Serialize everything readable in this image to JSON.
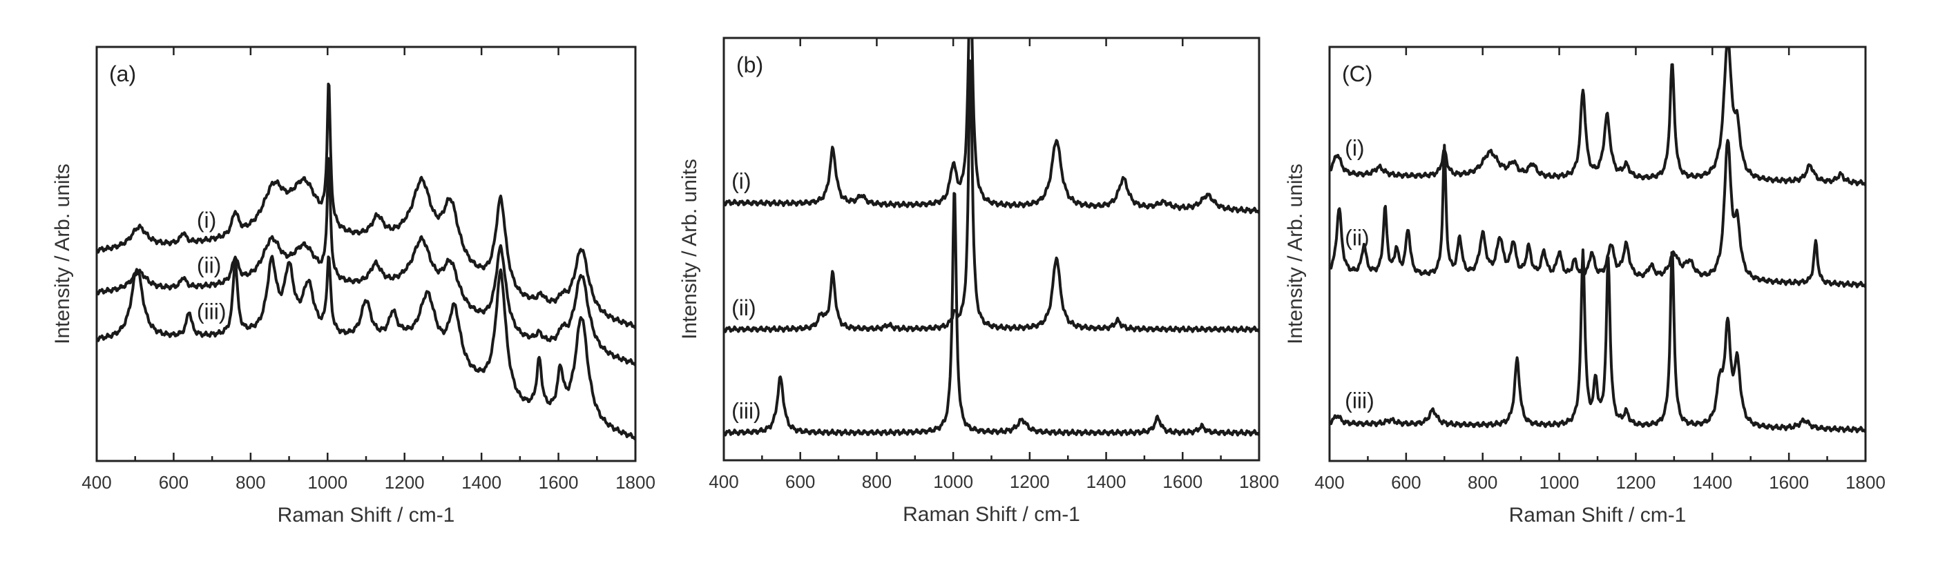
{
  "chart_data": [
    {
      "type": "line",
      "panel_label": "(a)",
      "xlabel": "Raman Shift / cm-1",
      "ylabel": "Intensity / Arb. units",
      "xlim": [
        400,
        1800
      ],
      "xticks": [
        400,
        600,
        800,
        1000,
        1200,
        1400,
        1600,
        1800
      ],
      "ylim": [
        0,
        10
      ],
      "grid": false,
      "series": [
        {
          "name": "(i)",
          "label_x": 660,
          "baseline": [
            [
              400,
              5.05
            ],
            [
              800,
              5.3
            ],
            [
              1200,
              5.2
            ],
            [
              1500,
              3.8
            ],
            [
              1800,
              3.2
            ]
          ],
          "peaks": [
            [
              510,
              0.5,
              25
            ],
            [
              625,
              0.25,
              8
            ],
            [
              760,
              0.55,
              10
            ],
            [
              860,
              1.1,
              35
            ],
            [
              940,
              1.3,
              45
            ],
            [
              1003,
              3.4,
              5
            ],
            [
              1130,
              0.5,
              18
            ],
            [
              1245,
              1.6,
              30
            ],
            [
              1320,
              1.4,
              25
            ],
            [
              1450,
              2.2,
              16
            ],
            [
              1555,
              0.2,
              10
            ],
            [
              1610,
              0.2,
              10
            ],
            [
              1660,
              1.6,
              22
            ]
          ]
        },
        {
          "name": "(ii)",
          "label_x": 660,
          "baseline": [
            [
              400,
              4.05
            ],
            [
              800,
              4.2
            ],
            [
              1200,
              4.1
            ],
            [
              1500,
              2.85
            ],
            [
              1800,
              2.3
            ]
          ],
          "peaks": [
            [
              510,
              0.45,
              25
            ],
            [
              625,
              0.25,
              8
            ],
            [
              760,
              0.6,
              10
            ],
            [
              855,
              1.0,
              30
            ],
            [
              940,
              0.9,
              40
            ],
            [
              1003,
              2.9,
              5
            ],
            [
              1125,
              0.5,
              18
            ],
            [
              1245,
              1.3,
              30
            ],
            [
              1320,
              1.0,
              25
            ],
            [
              1450,
              2.0,
              16
            ],
            [
              1550,
              0.2,
              10
            ],
            [
              1610,
              0.3,
              10
            ],
            [
              1660,
              1.9,
              22
            ]
          ]
        },
        {
          "name": "(iii)",
          "label_x": 660,
          "baseline": [
            [
              400,
              2.9
            ],
            [
              800,
              3.0
            ],
            [
              1200,
              2.85
            ],
            [
              1500,
              1.2
            ],
            [
              1800,
              0.5
            ]
          ],
          "peaks": [
            [
              505,
              1.7,
              18
            ],
            [
              640,
              0.6,
              8
            ],
            [
              760,
              1.8,
              7
            ],
            [
              855,
              1.7,
              15
            ],
            [
              900,
              1.5,
              15
            ],
            [
              950,
              1.2,
              18
            ],
            [
              1003,
              1.8,
              6
            ],
            [
              1100,
              0.9,
              15
            ],
            [
              1170,
              0.6,
              12
            ],
            [
              1260,
              1.4,
              25
            ],
            [
              1330,
              1.4,
              18
            ],
            [
              1450,
              3.0,
              16
            ],
            [
              1550,
              1.2,
              8
            ],
            [
              1605,
              1.0,
              9
            ],
            [
              1660,
              2.6,
              20
            ]
          ]
        }
      ]
    },
    {
      "type": "line",
      "panel_label": "(b)",
      "xlabel": "Raman Shift / cm-1",
      "ylabel": "Intensity / Arb. units",
      "xlim": [
        400,
        1800
      ],
      "xticks": [
        400,
        600,
        800,
        1000,
        1200,
        1400,
        1600,
        1800
      ],
      "ylim": [
        0,
        10
      ],
      "grid": false,
      "series": [
        {
          "name": "(i)",
          "label_x": 420,
          "baseline": [
            [
              400,
              6.1
            ],
            [
              1800,
              5.9
            ]
          ],
          "peaks": [
            [
              685,
              1.3,
              10
            ],
            [
              760,
              0.2,
              12
            ],
            [
              1000,
              0.9,
              10
            ],
            [
              1045,
              5.5,
              7
            ],
            [
              1270,
              1.6,
              15
            ],
            [
              1445,
              0.7,
              15
            ],
            [
              1550,
              0.15,
              20
            ],
            [
              1665,
              0.35,
              20
            ]
          ]
        },
        {
          "name": "(ii)",
          "label_x": 420,
          "baseline": [
            [
              400,
              3.1
            ],
            [
              1800,
              3.1
            ]
          ],
          "peaks": [
            [
              655,
              0.3,
              10
            ],
            [
              685,
              1.3,
              8
            ],
            [
              830,
              0.1,
              10
            ],
            [
              1003,
              0.3,
              8
            ],
            [
              1045,
              6.5,
              6
            ],
            [
              1270,
              1.7,
              12
            ],
            [
              1430,
              0.2,
              10
            ]
          ]
        },
        {
          "name": "(iii)",
          "label_x": 420,
          "baseline": [
            [
              400,
              0.65
            ],
            [
              1800,
              0.65
            ]
          ],
          "peaks": [
            [
              548,
              1.3,
              10
            ],
            [
              1003,
              5.8,
              6
            ],
            [
              1180,
              0.3,
              15
            ],
            [
              1535,
              0.35,
              10
            ],
            [
              1650,
              0.15,
              10
            ]
          ]
        }
      ]
    },
    {
      "type": "line",
      "panel_label": "(C)",
      "xlabel": "Raman Shift / cm-1",
      "ylabel": "Intensity / Arb. units",
      "xlim": [
        400,
        1800
      ],
      "xticks": [
        400,
        600,
        800,
        1000,
        1200,
        1400,
        1600,
        1800
      ],
      "ylim": [
        0,
        10
      ],
      "grid": false,
      "series": [
        {
          "name": "(i)",
          "label_x": 440,
          "baseline": [
            [
              400,
              6.9
            ],
            [
              1800,
              6.7
            ]
          ],
          "peaks": [
            [
              420,
              0.5,
              12
            ],
            [
              530,
              0.2,
              15
            ],
            [
              700,
              0.6,
              8
            ],
            [
              820,
              0.6,
              25
            ],
            [
              880,
              0.3,
              12
            ],
            [
              930,
              0.3,
              12
            ],
            [
              1062,
              2.1,
              8
            ],
            [
              1125,
              1.5,
              10
            ],
            [
              1175,
              0.3,
              10
            ],
            [
              1295,
              2.8,
              7
            ],
            [
              1440,
              3.3,
              12
            ],
            [
              1465,
              1.0,
              10
            ],
            [
              1655,
              0.4,
              12
            ],
            [
              1735,
              0.2,
              10
            ]
          ]
        },
        {
          "name": "(ii)",
          "label_x": 440,
          "baseline": [
            [
              400,
              4.5
            ],
            [
              1800,
              4.25
            ]
          ],
          "peaks": [
            [
              425,
              1.6,
              8
            ],
            [
              490,
              0.7,
              7
            ],
            [
              545,
              1.6,
              6
            ],
            [
              575,
              0.6,
              6
            ],
            [
              605,
              1.1,
              7
            ],
            [
              700,
              3.1,
              5
            ],
            [
              740,
              0.9,
              7
            ],
            [
              800,
              1.0,
              10
            ],
            [
              845,
              0.9,
              10
            ],
            [
              880,
              0.8,
              8
            ],
            [
              920,
              0.7,
              8
            ],
            [
              960,
              0.6,
              8
            ],
            [
              1000,
              0.6,
              8
            ],
            [
              1040,
              0.4,
              8
            ],
            [
              1085,
              0.6,
              8
            ],
            [
              1135,
              0.8,
              10
            ],
            [
              1175,
              0.8,
              10
            ],
            [
              1240,
              0.3,
              10
            ],
            [
              1300,
              0.6,
              15
            ],
            [
              1340,
              0.4,
              15
            ],
            [
              1440,
              3.3,
              10
            ],
            [
              1465,
              1.2,
              10
            ],
            [
              1670,
              1.0,
              6
            ]
          ]
        },
        {
          "name": "(iii)",
          "label_x": 440,
          "baseline": [
            [
              400,
              0.9
            ],
            [
              1800,
              0.75
            ]
          ],
          "peaks": [
            [
              420,
              0.2,
              10
            ],
            [
              560,
              0.1,
              15
            ],
            [
              670,
              0.35,
              12
            ],
            [
              890,
              1.6,
              8
            ],
            [
              1062,
              4.2,
              6
            ],
            [
              1095,
              1.0,
              6
            ],
            [
              1128,
              4.0,
              6
            ],
            [
              1175,
              0.3,
              8
            ],
            [
              1295,
              4.3,
              6
            ],
            [
              1420,
              1.0,
              10
            ],
            [
              1440,
              2.3,
              8
            ],
            [
              1465,
              1.5,
              10
            ],
            [
              1640,
              0.2,
              15
            ]
          ]
        }
      ]
    }
  ]
}
